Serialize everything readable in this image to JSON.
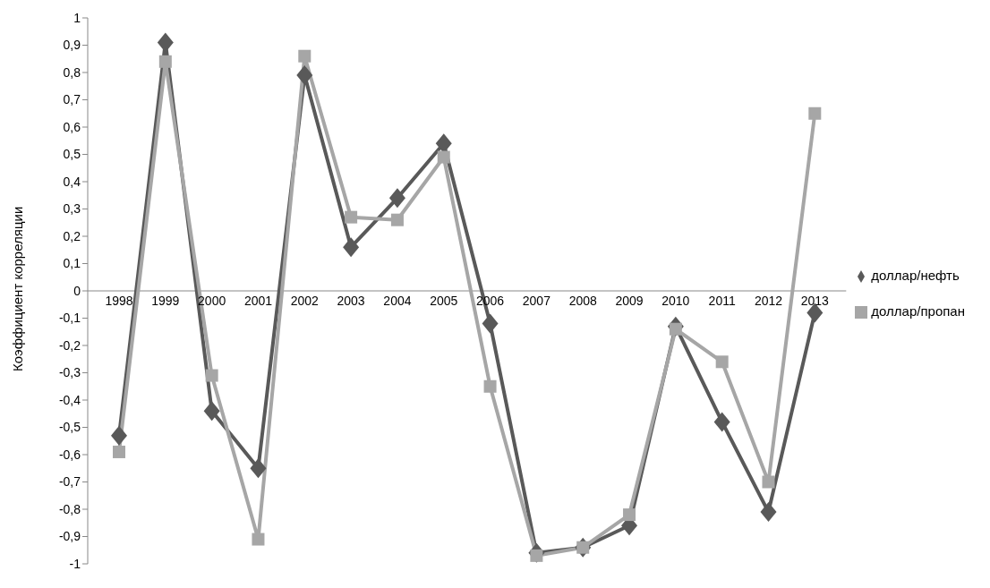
{
  "chart_data": {
    "type": "line",
    "ylabel": "Коэффициент корреляции",
    "categories": [
      "1998",
      "1999",
      "2000",
      "2001",
      "2002",
      "2003",
      "2004",
      "2005",
      "2006",
      "2007",
      "2008",
      "2009",
      "2010",
      "2011",
      "2012",
      "2013"
    ],
    "series": [
      {
        "name": "доллар/нефть",
        "color": "#595959",
        "marker": "diamond",
        "values": [
          -0.53,
          0.91,
          -0.44,
          -0.65,
          0.79,
          0.16,
          0.34,
          0.54,
          -0.12,
          -0.96,
          -0.94,
          -0.86,
          -0.13,
          -0.48,
          -0.81,
          -0.08
        ]
      },
      {
        "name": "доллар/пропан",
        "color": "#a6a6a6",
        "marker": "square",
        "values": [
          -0.59,
          0.84,
          -0.31,
          -0.91,
          0.86,
          0.27,
          0.26,
          0.49,
          -0.35,
          -0.97,
          -0.94,
          -0.82,
          -0.14,
          -0.26,
          -0.7,
          0.65
        ]
      }
    ],
    "ylim": [
      -1,
      1
    ],
    "yticks": [
      -1,
      {
        "value": -0.9,
        "label": "-0,9"
      },
      {
        "value": -0.8,
        "label": "-0,8"
      },
      {
        "value": -0.7,
        "label": "-0,7"
      },
      {
        "value": -0.6,
        "label": "-0,6"
      },
      {
        "value": -0.5,
        "label": "-0,5"
      },
      {
        "value": -0.4,
        "label": "-0,4"
      },
      {
        "value": -0.3,
        "label": "-0,3"
      },
      {
        "value": -0.2,
        "label": "-0,2"
      },
      {
        "value": -0.1,
        "label": "-0,1"
      },
      0,
      {
        "value": 0.1,
        "label": "0,1"
      },
      {
        "value": 0.2,
        "label": "0,2"
      },
      {
        "value": 0.3,
        "label": "0,3"
      },
      {
        "value": 0.4,
        "label": "0,4"
      },
      {
        "value": 0.5,
        "label": "0,5"
      },
      {
        "value": 0.6,
        "label": "0,6"
      },
      {
        "value": 0.7,
        "label": "0,7"
      },
      {
        "value": 0.8,
        "label": "0,8"
      },
      {
        "value": 0.9,
        "label": "0,9"
      },
      1
    ],
    "grid": false,
    "legend": "right",
    "line_style": "solid"
  }
}
